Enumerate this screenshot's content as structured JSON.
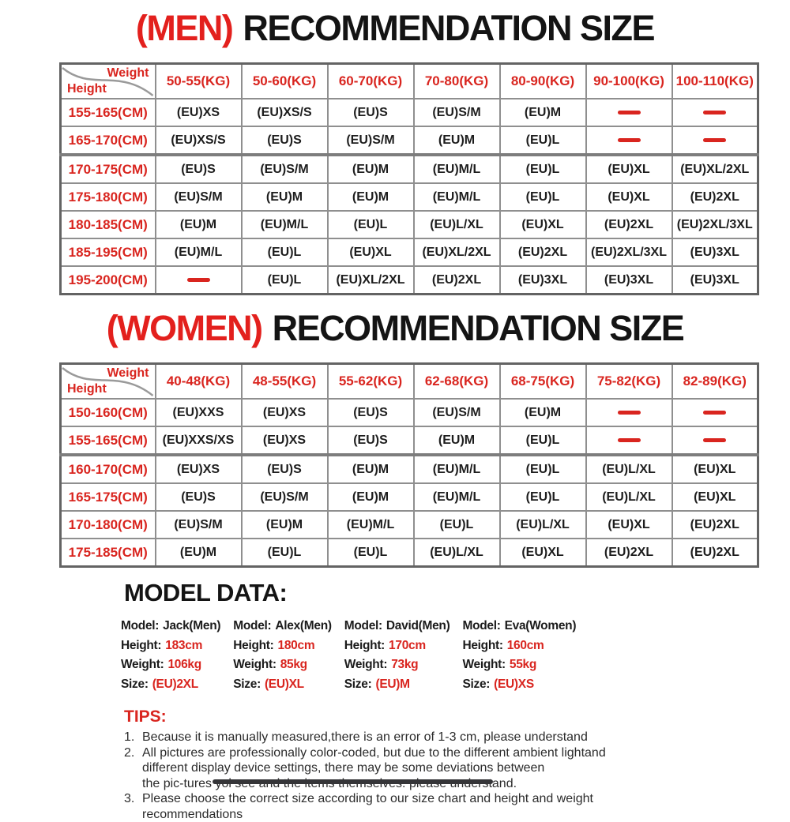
{
  "titles": {
    "men": {
      "prefix": "(MEN)",
      "text": "RECOMMENDATION SIZE"
    },
    "women": {
      "prefix": "(WOMEN)",
      "text": "RECOMMENDATION SIZE"
    }
  },
  "corner": {
    "weight": "Weight",
    "height": "Height"
  },
  "men_table": {
    "columns": [
      "50-55(KG)",
      "50-60(KG)",
      "60-70(KG)",
      "70-80(KG)",
      "80-90(KG)",
      "90-100(KG)",
      "100-110(KG)"
    ],
    "rows": [
      {
        "height": "155-165(CM)",
        "cells": [
          "(EU)XS",
          "(EU)XS/S",
          "(EU)S",
          "(EU)S/M",
          "(EU)M",
          "—",
          "—"
        ]
      },
      {
        "height": "165-170(CM)",
        "cells": [
          "(EU)XS/S",
          "(EU)S",
          "(EU)S/M",
          "(EU)M",
          "(EU)L",
          "—",
          "—"
        ]
      },
      {
        "height": "170-175(CM)",
        "cells": [
          "(EU)S",
          "(EU)S/M",
          "(EU)M",
          "(EU)M/L",
          "(EU)L",
          "(EU)XL",
          "(EU)XL/2XL"
        ]
      },
      {
        "height": "175-180(CM)",
        "cells": [
          "(EU)S/M",
          "(EU)M",
          "(EU)M",
          "(EU)M/L",
          "(EU)L",
          "(EU)XL",
          "(EU)2XL"
        ]
      },
      {
        "height": "180-185(CM)",
        "cells": [
          "(EU)M",
          "(EU)M/L",
          "(EU)L",
          "(EU)L/XL",
          "(EU)XL",
          "(EU)2XL",
          "(EU)2XL/3XL"
        ]
      },
      {
        "height": "185-195(CM)",
        "cells": [
          "(EU)M/L",
          "(EU)L",
          "(EU)XL",
          "(EU)XL/2XL",
          "(EU)2XL",
          "(EU)2XL/3XL",
          "(EU)3XL"
        ]
      },
      {
        "height": "195-200(CM)",
        "cells": [
          "—",
          "(EU)L",
          "(EU)XL/2XL",
          "(EU)2XL",
          "(EU)3XL",
          "(EU)3XL",
          "(EU)3XL"
        ]
      }
    ]
  },
  "women_table": {
    "columns": [
      "40-48(KG)",
      "48-55(KG)",
      "55-62(KG)",
      "62-68(KG)",
      "68-75(KG)",
      "75-82(KG)",
      "82-89(KG)"
    ],
    "rows": [
      {
        "height": "150-160(CM)",
        "cells": [
          "(EU)XXS",
          "(EU)XS",
          "(EU)S",
          "(EU)S/M",
          "(EU)M",
          "—",
          "—"
        ]
      },
      {
        "height": "155-165(CM)",
        "cells": [
          "(EU)XXS/XS",
          "(EU)XS",
          "(EU)S",
          "(EU)M",
          "(EU)L",
          "—",
          "—"
        ]
      },
      {
        "height": "160-170(CM)",
        "cells": [
          "(EU)XS",
          "(EU)S",
          "(EU)M",
          "(EU)M/L",
          "(EU)L",
          "(EU)L/XL",
          "(EU)XL"
        ]
      },
      {
        "height": "165-175(CM)",
        "cells": [
          "(EU)S",
          "(EU)S/M",
          "(EU)M",
          "(EU)M/L",
          "(EU)L",
          "(EU)L/XL",
          "(EU)XL"
        ]
      },
      {
        "height": "170-180(CM)",
        "cells": [
          "(EU)S/M",
          "(EU)M",
          "(EU)M/L",
          "(EU)L",
          "(EU)L/XL",
          "(EU)XL",
          "(EU)2XL"
        ]
      },
      {
        "height": "175-185(CM)",
        "cells": [
          "(EU)M",
          "(EU)L",
          "(EU)L",
          "(EU)L/XL",
          "(EU)XL",
          "(EU)2XL",
          "(EU)2XL"
        ]
      }
    ]
  },
  "model_data": {
    "heading": "MODEL DATA:",
    "labels": {
      "model": "Model:",
      "height": "Height:",
      "weight": "Weight:",
      "size": "Size:"
    },
    "models": [
      {
        "name": "Jack(Men)",
        "height": "183cm",
        "weight": "106kg",
        "size": "(EU)2XL"
      },
      {
        "name": "Alex(Men)",
        "height": "180cm",
        "weight": "85kg",
        "size": "(EU)XL"
      },
      {
        "name": "David(Men)",
        "height": "170cm",
        "weight": "73kg",
        "size": "(EU)M"
      },
      {
        "name": "Eva(Women)",
        "height": "160cm",
        "weight": "55kg",
        "size": "(EU)XS"
      }
    ]
  },
  "tips": {
    "heading": "TIPS:",
    "items": [
      {
        "num": "1.",
        "lines": [
          "Because it is manually measured,there is an error of 1-3 cm, please understand"
        ]
      },
      {
        "num": "2.",
        "lines": [
          "All pictures are professionally color-coded, but due to the different ambient lightand",
          "different display device settings, there may be some deviations between",
          "the pic-tures yol see and the items themselves. please understand."
        ]
      },
      {
        "num": "3.",
        "lines": [
          "Please choose the correct size according to our size chart and height and weight",
          "recommendations"
        ]
      }
    ]
  },
  "colors": {
    "accent_red": "#d9251f",
    "title_red": "#e3201d",
    "text_black": "#1d1d1d",
    "border_gray": "#8f8f8f"
  }
}
